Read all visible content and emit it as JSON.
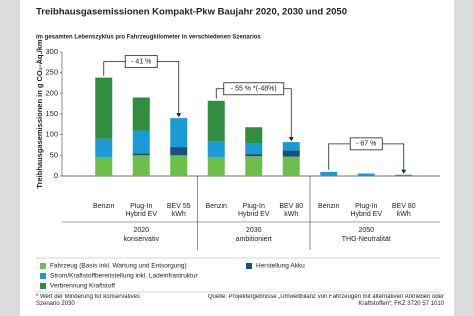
{
  "chart_data": {
    "type": "stacked-bar",
    "title": "Treibhausgasemissionen Kompakt-Pkw Baujahr 2020, 2030 und 2050",
    "subtitle": "im gesamten Lebenszyklus pro Fahrzeugkilometer in verschiedenen Szenarios",
    "ylabel": "Treibhausgasemissionen in g CO₂-Äq./km",
    "categories": [
      "Benzin",
      "Plug-In Hybrid EV",
      "BEV 55 kWh",
      "Benzin",
      "Plug-In Hybrid EV",
      "BEV 80 kWh",
      "Benzin",
      "Plug-In Hybrid EV",
      "BEV 80 kWh"
    ],
    "groups": [
      {
        "year": "2020",
        "scenario": "konservativ"
      },
      {
        "year": "2030",
        "scenario": "ambitioniert"
      },
      {
        "year": "2050",
        "scenario": "THG-Neutralität"
      }
    ],
    "series": [
      {
        "name": "Fahrzeug (Basis inkl. Wartung und Entsorgung)",
        "color": "#6cc04a",
        "values": [
          45,
          50,
          50,
          45,
          48,
          47,
          0,
          0,
          0
        ]
      },
      {
        "name": "Herstellung Akku",
        "color": "#1d4f7c",
        "values": [
          0,
          5,
          20,
          0,
          5,
          15,
          0,
          0,
          0
        ]
      },
      {
        "name": "Strom/Kraftstoffbereitstellung inkl. Ladeinfrastruktur",
        "color": "#1b9ad6",
        "values": [
          45,
          55,
          70,
          38,
          25,
          20,
          10,
          6,
          3
        ]
      },
      {
        "name": "Verbrennung Kraftstoff",
        "color": "#2f8f3f",
        "values": [
          148,
          80,
          0,
          99,
          40,
          0,
          0,
          0,
          0
        ]
      }
    ],
    "ylim": [
      0,
      300
    ],
    "yticks": [
      0,
      50,
      100,
      150,
      200,
      250,
      300
    ],
    "annotations": [
      "- 41 %",
      "- 55 % *(-48%)",
      "- 67 %"
    ],
    "footnote": "* Wert der Minderung für konservatives Szenario 2030",
    "source": "Quelle: Projektergebnisse „Umweltbilanz von Fahrzeugen mit alternativen Antrieben oder Kraftstoffen“; FKZ 3720 57 1010"
  }
}
